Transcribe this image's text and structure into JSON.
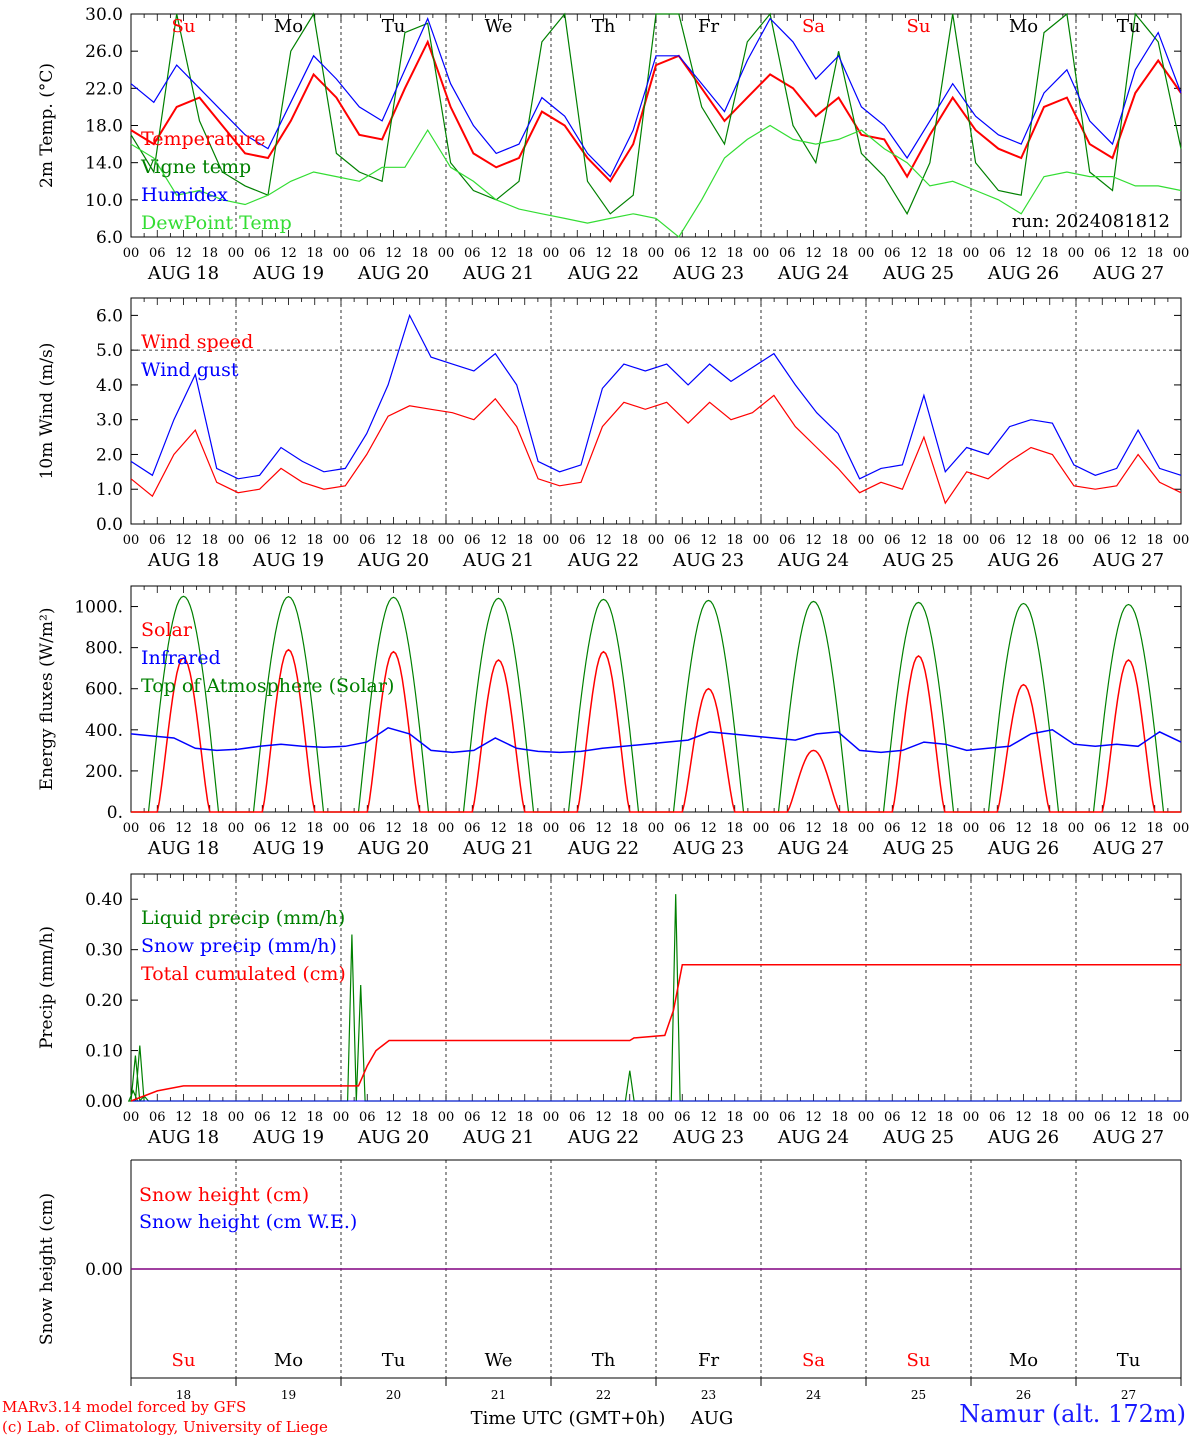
{
  "chart_data": [
    {
      "type": "line",
      "ylabel": "2m Temp. (°C)",
      "ylim": [
        6.0,
        30.0
      ],
      "yticks": [
        "6.0",
        "10.0",
        "14.0",
        "18.0",
        "22.0",
        "26.0",
        "30.0"
      ],
      "xlabel": "",
      "x_hour_ticks": [
        "00",
        "06",
        "12",
        "18"
      ],
      "x_day_labels": [
        "AUG 18",
        "AUG 19",
        "AUG 20",
        "AUG 21",
        "AUG 22",
        "AUG 23",
        "AUG 24",
        "AUG 25",
        "AUG 26",
        "AUG 27"
      ],
      "weekday_labels": [
        "Su",
        "Mo",
        "Tu",
        "We",
        "Th",
        "Fr",
        "Sa",
        "Su",
        "Mo",
        "Tu"
      ],
      "weekday_colors": [
        "#ff0000",
        "#000000",
        "#000000",
        "#000000",
        "#000000",
        "#000000",
        "#ff0000",
        "#ff0000",
        "#000000",
        "#000000"
      ],
      "annotation": "run: 2024081812",
      "series": [
        {
          "name": "Temperature",
          "color": "#ff0000",
          "values": [
            17.5,
            16.0,
            20.0,
            21.0,
            18.0,
            15.0,
            14.5,
            18.5,
            23.5,
            21.0,
            17.0,
            16.5,
            22.0,
            27.0,
            20.0,
            15.0,
            13.5,
            14.5,
            19.5,
            18.0,
            14.5,
            12.0,
            16.0,
            24.5,
            25.5,
            22.0,
            18.5,
            21.0,
            23.5,
            22.0,
            19.0,
            21.0,
            17.0,
            16.5,
            12.5,
            17.0,
            21.0,
            17.5,
            15.5,
            14.5,
            20.0,
            21.0,
            16.0,
            14.5,
            21.5,
            25.0,
            21.5
          ]
        },
        {
          "name": "Vigne temp",
          "color": "#008000",
          "values": [
            17.0,
            13.0,
            30.0,
            18.5,
            13.0,
            11.5,
            10.5,
            26.0,
            30.0,
            15.0,
            13.0,
            12.0,
            28.0,
            29.0,
            14.0,
            11.0,
            10.0,
            12.0,
            27.0,
            30.0,
            12.0,
            8.5,
            10.5,
            30.0,
            30.0,
            20.0,
            16.0,
            27.0,
            30.0,
            18.0,
            14.0,
            26.0,
            15.0,
            12.5,
            8.5,
            14.0,
            30.0,
            14.0,
            11.0,
            10.5,
            28.0,
            30.0,
            13.0,
            11.0,
            30.0,
            27.0,
            15.5
          ]
        },
        {
          "name": "Humidex",
          "color": "#0000ff",
          "values": [
            22.5,
            20.5,
            24.5,
            22.0,
            19.5,
            17.0,
            15.5,
            20.5,
            25.5,
            23.0,
            20.0,
            18.5,
            24.0,
            29.5,
            22.5,
            18.0,
            15.0,
            16.0,
            21.0,
            19.0,
            15.0,
            12.5,
            17.5,
            25.5,
            25.5,
            22.5,
            19.5,
            25.0,
            29.5,
            27.0,
            23.0,
            25.5,
            20.0,
            18.0,
            14.5,
            18.5,
            22.5,
            19.0,
            17.0,
            16.0,
            21.5,
            24.0,
            18.5,
            16.0,
            24.0,
            28.0,
            21.5
          ]
        },
        {
          "name": "DewPoint Temp",
          "color": "#33dd33",
          "values": [
            16.0,
            14.5,
            10.5,
            11.0,
            10.0,
            9.5,
            10.5,
            12.0,
            13.0,
            12.5,
            12.0,
            13.5,
            13.5,
            17.5,
            13.5,
            12.0,
            10.0,
            9.0,
            8.5,
            8.0,
            7.5,
            8.0,
            8.5,
            8.0,
            6.0,
            10.0,
            14.5,
            16.5,
            18.0,
            16.5,
            16.0,
            16.5,
            17.5,
            15.5,
            14.0,
            11.5,
            12.0,
            11.0,
            10.0,
            8.5,
            12.5,
            13.0,
            12.5,
            12.5,
            11.5,
            11.5,
            11.0
          ]
        }
      ]
    },
    {
      "type": "line",
      "ylabel": "10m Wind (m/s)",
      "ylim": [
        0.0,
        6.5
      ],
      "yticks": [
        "0.0",
        "1.0",
        "2.0",
        "3.0",
        "4.0",
        "5.0",
        "6.0"
      ],
      "reference_line": 5.0,
      "x_hour_ticks": [
        "00",
        "06",
        "12",
        "18"
      ],
      "x_day_labels": [
        "AUG 18",
        "AUG 19",
        "AUG 20",
        "AUG 21",
        "AUG 22",
        "AUG 23",
        "AUG 24",
        "AUG 25",
        "AUG 26",
        "AUG 27"
      ],
      "series": [
        {
          "name": "Wind speed",
          "color": "#ff0000",
          "values": [
            1.3,
            0.8,
            2.0,
            2.7,
            1.2,
            0.9,
            1.0,
            1.6,
            1.2,
            1.0,
            1.1,
            2.0,
            3.1,
            3.4,
            3.3,
            3.2,
            3.0,
            3.6,
            2.8,
            1.3,
            1.1,
            1.2,
            2.8,
            3.5,
            3.3,
            3.5,
            2.9,
            3.5,
            3.0,
            3.2,
            3.7,
            2.8,
            2.2,
            1.6,
            0.9,
            1.2,
            1.0,
            2.5,
            0.6,
            1.5,
            1.3,
            1.8,
            2.2,
            2.0,
            1.1,
            1.0,
            1.1,
            2.0,
            1.2,
            0.9
          ]
        },
        {
          "name": "Wind gust",
          "color": "#0000ff",
          "values": [
            1.8,
            1.4,
            3.0,
            4.3,
            1.6,
            1.3,
            1.4,
            2.2,
            1.8,
            1.5,
            1.6,
            2.6,
            4.0,
            6.0,
            4.8,
            4.6,
            4.4,
            4.9,
            4.0,
            1.8,
            1.5,
            1.7,
            3.9,
            4.6,
            4.4,
            4.6,
            4.0,
            4.6,
            4.1,
            4.5,
            4.9,
            4.0,
            3.2,
            2.6,
            1.3,
            1.6,
            1.7,
            3.7,
            1.5,
            2.2,
            2.0,
            2.8,
            3.0,
            2.9,
            1.7,
            1.4,
            1.6,
            2.7,
            1.6,
            1.4
          ]
        }
      ]
    },
    {
      "type": "line",
      "ylabel": "Energy fluxes (W/m²)",
      "ylim": [
        0,
        1100
      ],
      "yticks": [
        "0.",
        "200.",
        "400.",
        "600.",
        "800.",
        "1000."
      ],
      "x_hour_ticks": [
        "00",
        "06",
        "12",
        "18"
      ],
      "x_day_labels": [
        "AUG 18",
        "AUG 19",
        "AUG 20",
        "AUG 21",
        "AUG 22",
        "AUG 23",
        "AUG 24",
        "AUG 25",
        "AUG 26",
        "AUG 27"
      ],
      "daily_solar_peaks": [
        750,
        790,
        780,
        740,
        780,
        600,
        300,
        760,
        620,
        740
      ],
      "daily_toa_peaks": [
        1050,
        1048,
        1045,
        1040,
        1035,
        1030,
        1025,
        1020,
        1015,
        1010
      ],
      "series": [
        {
          "name": "Solar",
          "color": "#ff0000",
          "description_values": "daily bell curves, peaks per day listed in daily_solar_peaks"
        },
        {
          "name": "Infrared",
          "color": "#0000ff",
          "values": [
            380,
            370,
            360,
            310,
            300,
            305,
            320,
            330,
            320,
            315,
            320,
            340,
            410,
            380,
            300,
            290,
            300,
            360,
            310,
            295,
            290,
            295,
            310,
            320,
            330,
            340,
            350,
            390,
            380,
            370,
            360,
            350,
            380,
            390,
            300,
            290,
            300,
            340,
            330,
            300,
            310,
            320,
            380,
            400,
            330,
            320,
            330,
            320,
            390,
            340
          ]
        },
        {
          "name": "Top of Atmosphere (Solar)",
          "color": "#008000",
          "description_values": "daily bell curves, peaks per day listed in daily_toa_peaks"
        }
      ]
    },
    {
      "type": "line",
      "ylabel": "Precip (mm/h)",
      "ylim": [
        0.0,
        0.45
      ],
      "yticks": [
        "0.00",
        "0.10",
        "0.20",
        "0.30",
        "0.40"
      ],
      "x_hour_ticks": [
        "00",
        "06",
        "12",
        "18"
      ],
      "x_day_labels": [
        "AUG 18",
        "AUG 19",
        "AUG 20",
        "AUG 21",
        "AUG 22",
        "AUG 23",
        "AUG 24",
        "AUG 25",
        "AUG 26",
        "AUG 27"
      ],
      "series": [
        {
          "name": "Liquid precip (mm/h)",
          "color": "#008000",
          "peaks": [
            [
              0.5,
              0.02
            ],
            [
              1.0,
              0.09
            ],
            [
              2.0,
              0.11
            ],
            [
              3.0,
              0.01
            ],
            [
              50.5,
              0.33
            ],
            [
              52.5,
              0.23
            ],
            [
              114.0,
              0.06
            ],
            [
              124.5,
              0.41
            ]
          ]
        },
        {
          "name": "Snow precip (mm/h)",
          "color": "#0000ff",
          "values_constant": 0.0
        },
        {
          "name": "Total cumulated (cm)",
          "color": "#ff0000",
          "steps": [
            [
              0,
              0.0
            ],
            [
              6,
              0.02
            ],
            [
              12,
              0.03
            ],
            [
              24,
              0.03
            ],
            [
              52,
              0.03
            ],
            [
              54,
              0.07
            ],
            [
              56,
              0.1
            ],
            [
              59,
              0.12
            ],
            [
              114,
              0.12
            ],
            [
              115,
              0.125
            ],
            [
              122,
              0.13
            ],
            [
              124,
              0.18
            ],
            [
              126,
              0.27
            ],
            [
              240,
              0.27
            ]
          ]
        }
      ]
    },
    {
      "type": "line",
      "ylabel": "Snow height (cm)",
      "yticks": [
        "0.00"
      ],
      "series": [
        {
          "name": "Snow height (cm)",
          "color": "#ff0000",
          "values_constant": 0.0
        },
        {
          "name": "Snow height (cm W.E.)",
          "color": "#0000ff",
          "values_constant": 0.0
        }
      ],
      "weekday_labels": [
        "Su",
        "Mo",
        "Tu",
        "We",
        "Th",
        "Fr",
        "Sa",
        "Su",
        "Mo",
        "Tu"
      ],
      "weekday_colors": [
        "#ff0000",
        "#000000",
        "#000000",
        "#000000",
        "#000000",
        "#000000",
        "#ff0000",
        "#ff0000",
        "#000000",
        "#000000"
      ],
      "day_numbers": [
        "18",
        "19",
        "20",
        "21",
        "22",
        "23",
        "24",
        "25",
        "26",
        "27"
      ],
      "xlabel": "Time UTC (GMT+0h)",
      "month_label": "AUG"
    }
  ],
  "footer": {
    "credit_line1": "MARv3.14 model forced by GFS",
    "credit_line2": "(c) Lab. of Climatology, University of Liege",
    "station": "Namur (alt. 172m)"
  }
}
